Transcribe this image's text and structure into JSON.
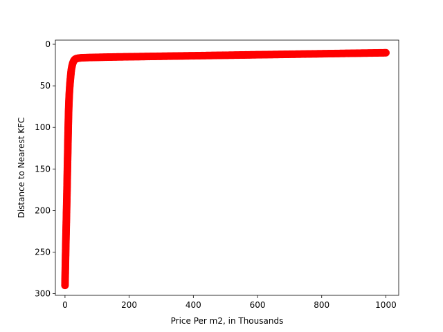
{
  "chart_data": {
    "type": "scatter",
    "title": "",
    "xlabel": "Price Per m2, in Thousands",
    "ylabel": "Distance to Nearest KFC",
    "xlim": [
      -30,
      1040
    ],
    "ylim": [
      302,
      -5
    ],
    "y_inverted": true,
    "grid": false,
    "legend": "none",
    "xticks": [
      0,
      200,
      400,
      600,
      800,
      1000
    ],
    "yticks": [
      0,
      50,
      100,
      150,
      200,
      250,
      300
    ],
    "marker_color": "#ff0000",
    "marker": "circle",
    "series": [
      {
        "x": [
          0,
          1,
          2,
          3,
          4,
          5,
          6,
          7,
          8,
          9,
          10,
          11,
          12,
          13,
          14,
          15,
          16,
          17,
          18,
          19,
          20,
          22,
          24,
          26,
          28,
          30,
          33,
          36,
          40,
          45,
          50,
          60,
          80,
          100,
          150,
          200,
          250,
          300,
          350,
          400,
          450,
          500,
          550,
          600,
          650,
          700,
          750,
          800,
          850,
          900,
          950,
          1000
        ],
        "y": [
          290,
          270,
          250,
          232,
          215,
          198,
          180,
          160,
          140,
          120,
          100,
          84,
          72,
          63,
          56,
          50,
          45,
          41,
          37,
          33,
          30,
          26,
          23,
          21,
          19.5,
          18.5,
          17.7,
          17.2,
          16.8,
          16.5,
          16.3,
          16.1,
          15.9,
          15.7,
          15.3,
          15.0,
          14.7,
          14.4,
          14.1,
          13.8,
          13.5,
          13.2,
          12.9,
          12.6,
          12.3,
          12.0,
          11.7,
          11.4,
          11.1,
          10.8,
          10.5,
          10.2
        ]
      }
    ]
  }
}
